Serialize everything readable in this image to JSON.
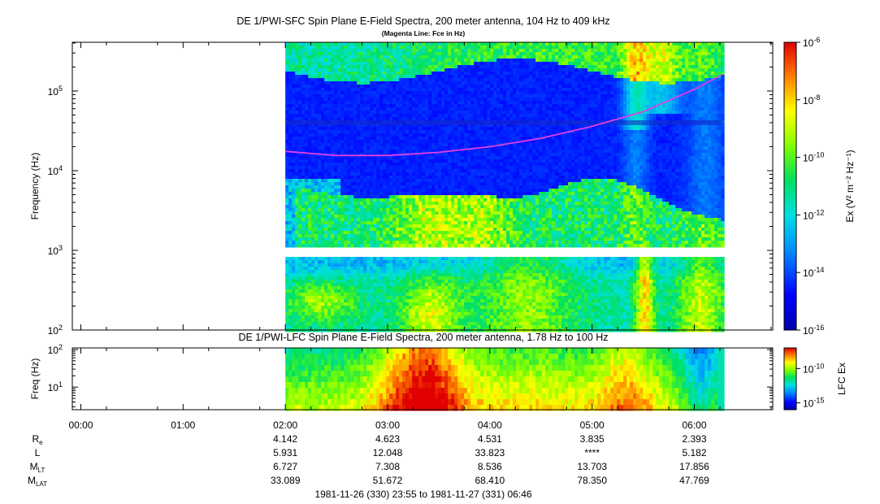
{
  "chart_data": [
    {
      "type": "heatmap",
      "title": "DE 1/PWI-SFC  Spin Plane E-Field Spectra, 200 meter antenna, 104 Hz to 409 kHz",
      "subtitle": "(Magenta Line: Fce in Hz)",
      "ylabel": "Frequency (Hz)",
      "ylim": [
        100,
        409000
      ],
      "y_scale": "log",
      "y_ticks": [
        {
          "base": "10",
          "exp": "2"
        },
        {
          "base": "10",
          "exp": "3"
        },
        {
          "base": "10",
          "exp": "4"
        },
        {
          "base": "10",
          "exp": "5"
        }
      ],
      "xlim": [
        "23:55",
        "06:46"
      ],
      "data_start": "02:00",
      "data_end": "06:16",
      "gap_frequency_range_hz": [
        900,
        1030
      ],
      "colorbar": {
        "label": "Ex (V² m⁻² Hz⁻¹)",
        "scale": "log",
        "range": [
          1e-16,
          1e-06
        ],
        "ticks": [
          {
            "base": "10",
            "exp": "-6"
          },
          {
            "base": "10",
            "exp": "-8"
          },
          {
            "base": "10",
            "exp": "-10"
          },
          {
            "base": "10",
            "exp": "-12"
          },
          {
            "base": "10",
            "exp": "-14"
          },
          {
            "base": "10",
            "exp": "-16"
          }
        ]
      },
      "series": [
        {
          "name": "Fce",
          "color": "#e040e0",
          "x": [
            "02:00",
            "02:30",
            "03:00",
            "03:30",
            "04:00",
            "04:30",
            "05:00",
            "05:30",
            "06:00",
            "06:16"
          ],
          "y": [
            17500,
            15500,
            15500,
            17000,
            20000,
            25500,
            36000,
            55000,
            105000,
            160000
          ]
        }
      ]
    },
    {
      "type": "heatmap",
      "title": "DE 1/PWI-LFC  Spin Plane E-Field Spectra, 200 meter antenna, 1.78 Hz to 100 Hz",
      "ylabel": "Freq (Hz)",
      "ylim": [
        2.5,
        110
      ],
      "y_scale": "log",
      "y_ticks": [
        {
          "base": "10",
          "exp": "1"
        },
        {
          "base": "10",
          "exp": "2"
        }
      ],
      "data_start": "02:00",
      "data_end": "06:16",
      "colorbar": {
        "label": "LFC Ex",
        "scale": "log",
        "range": [
          1e-16,
          1e-07
        ],
        "ticks": [
          {
            "base": "10",
            "exp": "-10"
          },
          {
            "base": "10",
            "exp": "-15"
          }
        ]
      }
    }
  ],
  "x_axis": {
    "tick_labels": [
      "00:00",
      "01:00",
      "02:00",
      "03:00",
      "04:00",
      "05:00",
      "06:00"
    ]
  },
  "ephemeris": {
    "rows": [
      {
        "label": "R",
        "sub": "e",
        "values": [
          "4.142",
          "4.623",
          "4.531",
          "3.835",
          "2.393"
        ]
      },
      {
        "label": "L",
        "sub": "",
        "values": [
          "5.931",
          "12.048",
          "33.823",
          "****",
          "5.182"
        ]
      },
      {
        "label": "M",
        "sub": "LT",
        "values": [
          "6.727",
          "7.308",
          "8.536",
          "13.703",
          "17.856"
        ]
      },
      {
        "label": "M",
        "sub": "LAT",
        "values": [
          "33.089",
          "51.672",
          "68.410",
          "78.350",
          "47.769"
        ]
      }
    ]
  },
  "footer": {
    "time_range": "1981-11-26 (330) 23:55 to 1981-11-27 (331) 06:46"
  }
}
